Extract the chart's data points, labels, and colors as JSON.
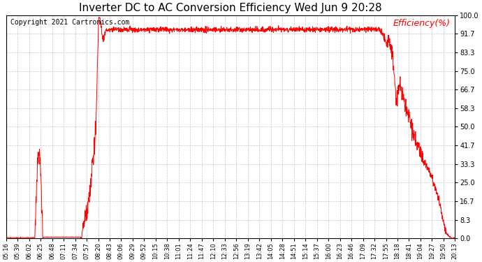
{
  "title": "Inverter DC to AC Conversion Efficiency Wed Jun 9 20:28",
  "copyright": "Copyright 2021 Cartronics.com",
  "ylabel": "Efficiency(%)",
  "ylabel_color": "#ff0000",
  "line_color": "#ff0000",
  "background_color": "#ffffff",
  "grid_color": "#bbbbbb",
  "yticks": [
    0.0,
    8.3,
    16.7,
    25.0,
    33.3,
    41.7,
    50.0,
    58.3,
    66.7,
    75.0,
    83.3,
    91.7,
    100.0
  ],
  "xtick_labels": [
    "05:16",
    "05:39",
    "06:02",
    "06:25",
    "06:48",
    "07:11",
    "07:34",
    "07:57",
    "08:20",
    "08:43",
    "09:06",
    "09:29",
    "09:52",
    "10:15",
    "10:38",
    "11:01",
    "11:24",
    "11:47",
    "12:10",
    "12:33",
    "12:56",
    "13:19",
    "13:42",
    "14:05",
    "14:28",
    "14:51",
    "15:14",
    "15:37",
    "16:00",
    "16:23",
    "16:46",
    "17:09",
    "17:32",
    "17:55",
    "18:18",
    "18:41",
    "19:04",
    "19:27",
    "19:50",
    "20:13"
  ],
  "ylim": [
    0.0,
    100.0
  ],
  "title_fontsize": 11,
  "copyright_fontsize": 7,
  "ylabel_fontsize": 9
}
